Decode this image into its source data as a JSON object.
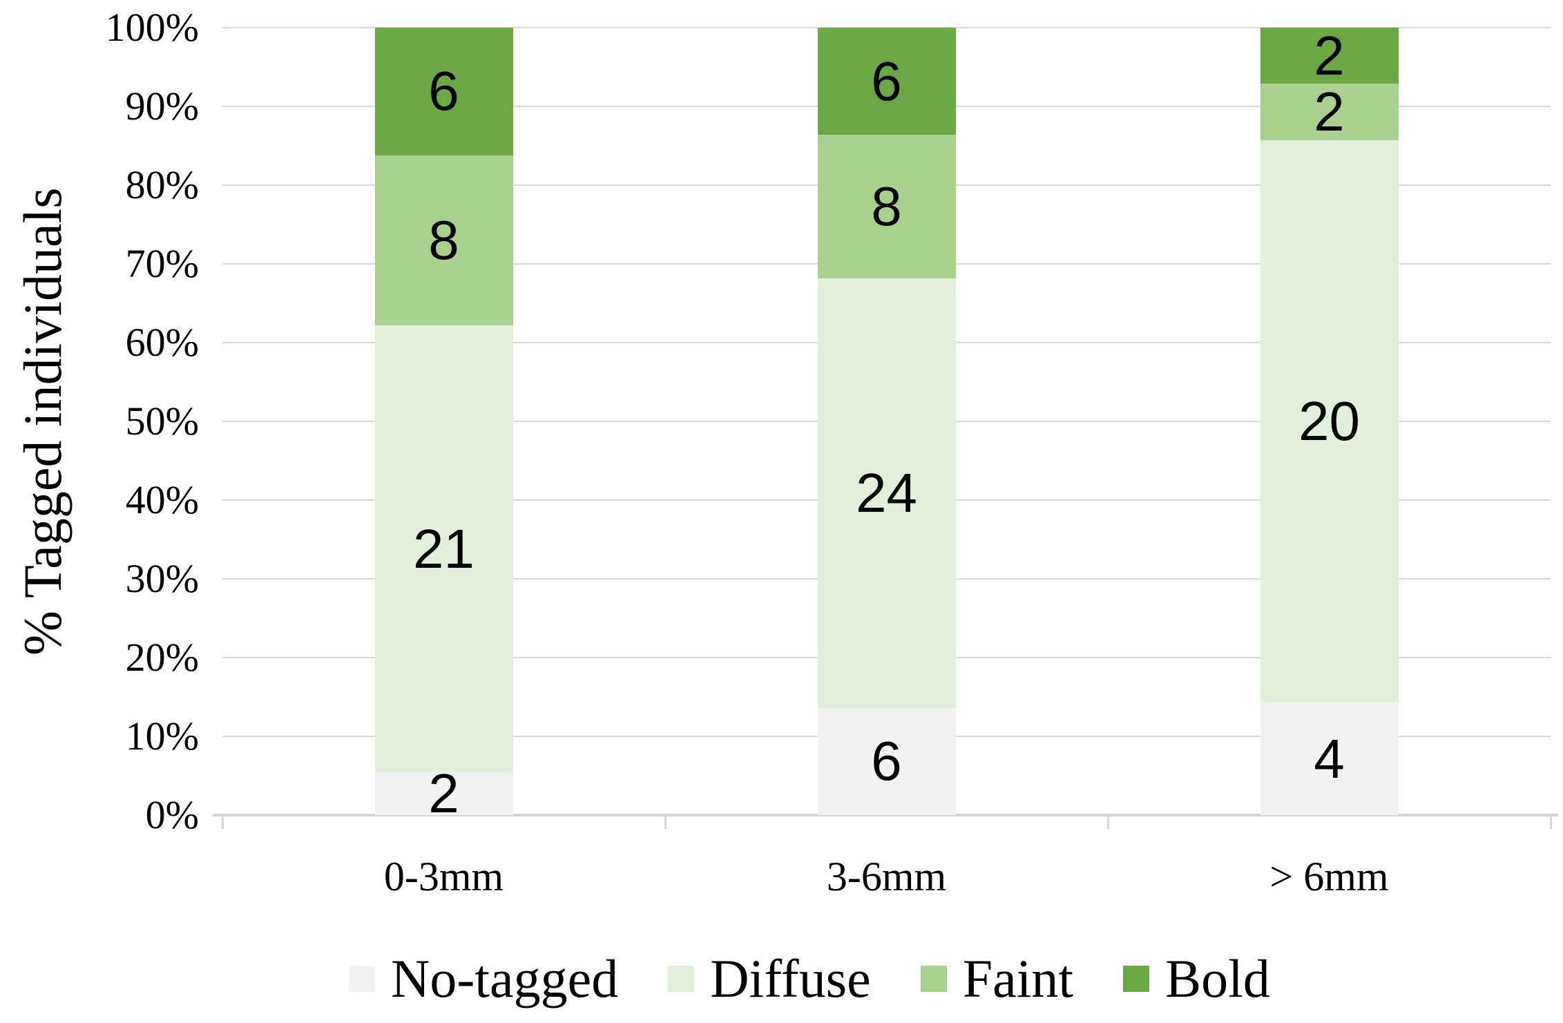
{
  "chart_data": {
    "type": "bar",
    "variant": "stacked-100-percent",
    "title": "",
    "xlabel": "",
    "ylabel": "% Tagged individuals",
    "categories": [
      "0-3mm",
      "3-6mm",
      "> 6mm"
    ],
    "series": [
      {
        "name": "No-tagged",
        "color": "#f2f2f2",
        "values": [
          2,
          6,
          4
        ]
      },
      {
        "name": "Diffuse",
        "color": "#e2efda",
        "values": [
          21,
          24,
          20
        ]
      },
      {
        "name": "Faint",
        "color": "#a9d18e",
        "values": [
          8,
          8,
          2
        ]
      },
      {
        "name": "Bold",
        "color": "#6aa843",
        "values": [
          6,
          6,
          2
        ]
      }
    ],
    "y_ticks": [
      "100%",
      "90%",
      "80%",
      "70%",
      "60%",
      "50%",
      "40%",
      "30%",
      "20%",
      "10%",
      "0%"
    ],
    "ylim": [
      0,
      100
    ],
    "grid": true,
    "gridline_interval_percent": 10,
    "legend_position": "bottom",
    "legend": [
      "No-tagged",
      "Diffuse",
      "Faint",
      "Bold"
    ]
  },
  "colors": {
    "gridline": "#d9d9d9",
    "axis_line": "#d5d5d5",
    "text": "#000000",
    "background": "#ffffff"
  }
}
